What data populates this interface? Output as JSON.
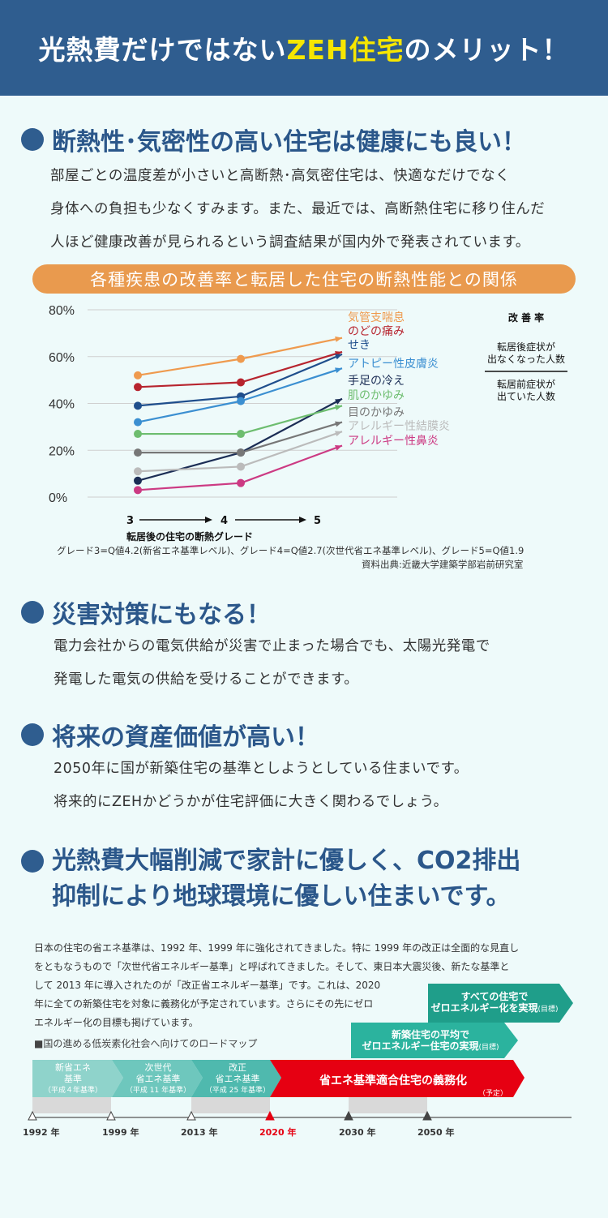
{
  "header": {
    "title_pre": "光熱費だけではない",
    "title_hl": "ZEH住宅",
    "title_post": "のメリット！"
  },
  "section1": {
    "title": "断熱性･気密性の高い住宅は健康にも良い！",
    "lines": [
      "部屋ごとの温度差が小さいと高断熱･高気密住宅は、快適なだけでなく",
      "身体への負担も少なくすみます。また、最近では、高断熱住宅に移り住んだ",
      "人ほど健康改善が見られるという調査結果が国内外で発表されています。"
    ]
  },
  "chart_banner": "各種疾患の改善率と転居した住宅の断熱性能との関係",
  "chart_data": {
    "type": "line",
    "title": "各種疾患の改善率と転居した住宅の断熱性能との関係",
    "x": [
      "3",
      "4",
      "5"
    ],
    "xlabel": "転居後の住宅の断熱グレード",
    "ylabel": "",
    "ylim": [
      0,
      80
    ],
    "yticks": [
      "80%",
      "60%",
      "40%",
      "20%",
      "0%"
    ],
    "series": [
      {
        "name": "気管支喘息",
        "values": [
          52,
          59,
          68
        ],
        "color": "#ef9a4e"
      },
      {
        "name": "のどの痛み",
        "values": [
          47,
          49,
          62
        ],
        "color": "#b7242e"
      },
      {
        "name": "せき",
        "values": [
          39,
          43,
          61
        ],
        "color": "#1f4e8c"
      },
      {
        "name": "アトピー性皮膚炎",
        "values": [
          32,
          41,
          55
        ],
        "color": "#3b8fd1"
      },
      {
        "name": "手足の冷え",
        "values": [
          7,
          19,
          42
        ],
        "color": "#1b2d55"
      },
      {
        "name": "肌のかゆみ",
        "values": [
          27,
          27,
          39
        ],
        "color": "#6dbd6f"
      },
      {
        "name": "目のかゆみ",
        "values": [
          19,
          19,
          32
        ],
        "color": "#777777"
      },
      {
        "name": "アレルギー性結膜炎",
        "values": [
          11,
          13,
          28
        ],
        "color": "#bbbbbb"
      },
      {
        "name": "アレルギー性鼻炎",
        "values": [
          3,
          6,
          22
        ],
        "color": "#cc3a83"
      }
    ],
    "legend_title": "改 善 率",
    "legend_top": "転居後症状が出なくなった人数",
    "legend_bottom": "転居前症状が出ていた人数",
    "note": "グレード3=Q値4.2(新省エネ基準レベル)、グレード4=Q値2.7(次世代省エネ基準レベル)、グレード5=Q値1.9",
    "source": "資料出典:近畿大学建築学部岩前研究室"
  },
  "section2": {
    "title": "災害対策にもなる！",
    "lines": [
      "電力会社からの電気供給が災害で止まった場合でも、太陽光発電で",
      "発電した電気の供給を受けることができます。"
    ]
  },
  "section3": {
    "title": "将来の資産価値が高い！",
    "lines": [
      "2050年に国が新築住宅の基準としようとしている住まいです。",
      "将来的にZEHかどうかが住宅評価に大きく関わるでしょう。"
    ]
  },
  "section4": {
    "title_line1": "光熱費大幅削減で家計に優しく、CO2排出",
    "title_line2": "抑制により地球環境に優しい住まいです。"
  },
  "info": {
    "lines_full": [
      "日本の住宅の省エネ基準は、1992 年、1999 年に強化されてきました。特に 1999 年の改正は全面的な見直し",
      "をともなうもので「次世代省エネルギー基準」と呼ばれてきました。そして、東日本大震災後、新たな基準と"
    ],
    "lines_short": [
      "して 2013 年に導入されたのが「改正省エネルギー基準」です。これは、2020",
      "年に全ての新築住宅を対象に義務化が予定されています。さらにその先にゼロ",
      "エネルギー化の目標も掲げています。"
    ],
    "roadmap_label": "■国の進める低炭素化社会へ向けてのロードマップ"
  },
  "roadmap": {
    "goal_all": "すべての住宅で",
    "goal_all2": "ゼロエネルギー化を実現",
    "goal_all_tag": "(目標)",
    "goal_avg": "新築住宅の平均で",
    "goal_avg2": "ゼロエネルギー住宅の実現",
    "goal_avg_tag": "(目標)",
    "stages": [
      {
        "l1": "新省エネ",
        "l2": "基準",
        "l3": "（平成４年基準）"
      },
      {
        "l1": "次世代",
        "l2": "省エネ基準",
        "l3": "（平成 11 年基準）"
      },
      {
        "l1": "改正",
        "l2": "省エネ基準",
        "l3": "（平成 25 年基準）"
      }
    ],
    "mandate": "省エネ基準適合住宅の義務化",
    "mandate_tag": "（予定）",
    "years": [
      "1992 年",
      "1999 年",
      "2013 年",
      "2020 年",
      "2030 年",
      "2050 年"
    ]
  },
  "colors": {
    "header_bg": "#2f5d8f",
    "accent_yellow": "#f7e600",
    "title_blue": "#2b578a",
    "banner_orange": "#e99a4e",
    "mandate_red": "#e60012",
    "goal_teal": "#1f9e8a"
  }
}
